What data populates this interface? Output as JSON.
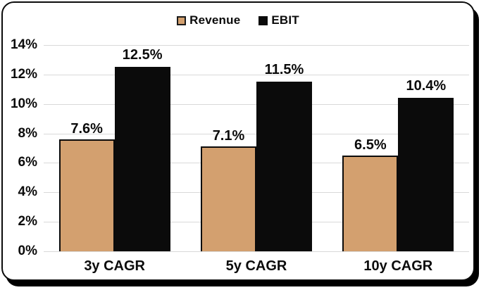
{
  "colors": {
    "revenue": "#D3A06F",
    "ebit": "#0B0B0B",
    "gridline": "#D9D9D9",
    "card_border": "#0B0B0B",
    "shadow": "#000000",
    "background": "#FFFFFF",
    "text": "#0B0B0B"
  },
  "chart_data": {
    "type": "bar",
    "categories": [
      "3y CAGR",
      "5y CAGR",
      "10y CAGR"
    ],
    "series": [
      {
        "name": "Revenue",
        "values": [
          7.6,
          7.1,
          6.5
        ],
        "data_labels": [
          "7.6%",
          "7.1%",
          "6.5%"
        ],
        "color": "#D3A06F"
      },
      {
        "name": "EBIT",
        "values": [
          12.5,
          11.5,
          10.4
        ],
        "data_labels": [
          "12.5%",
          "11.5%",
          "10.4%"
        ],
        "color": "#0B0B0B"
      }
    ],
    "ylim": [
      0,
      14
    ],
    "y_ticks": [
      {
        "value": 0,
        "label": "0%"
      },
      {
        "value": 2,
        "label": "2%"
      },
      {
        "value": 4,
        "label": "4%"
      },
      {
        "value": 6,
        "label": "6%"
      },
      {
        "value": 8,
        "label": "8%"
      },
      {
        "value": 10,
        "label": "10%"
      },
      {
        "value": 12,
        "label": "12%"
      },
      {
        "value": 14,
        "label": "14%"
      }
    ],
    "grid": true,
    "legend_position": "top-center"
  }
}
